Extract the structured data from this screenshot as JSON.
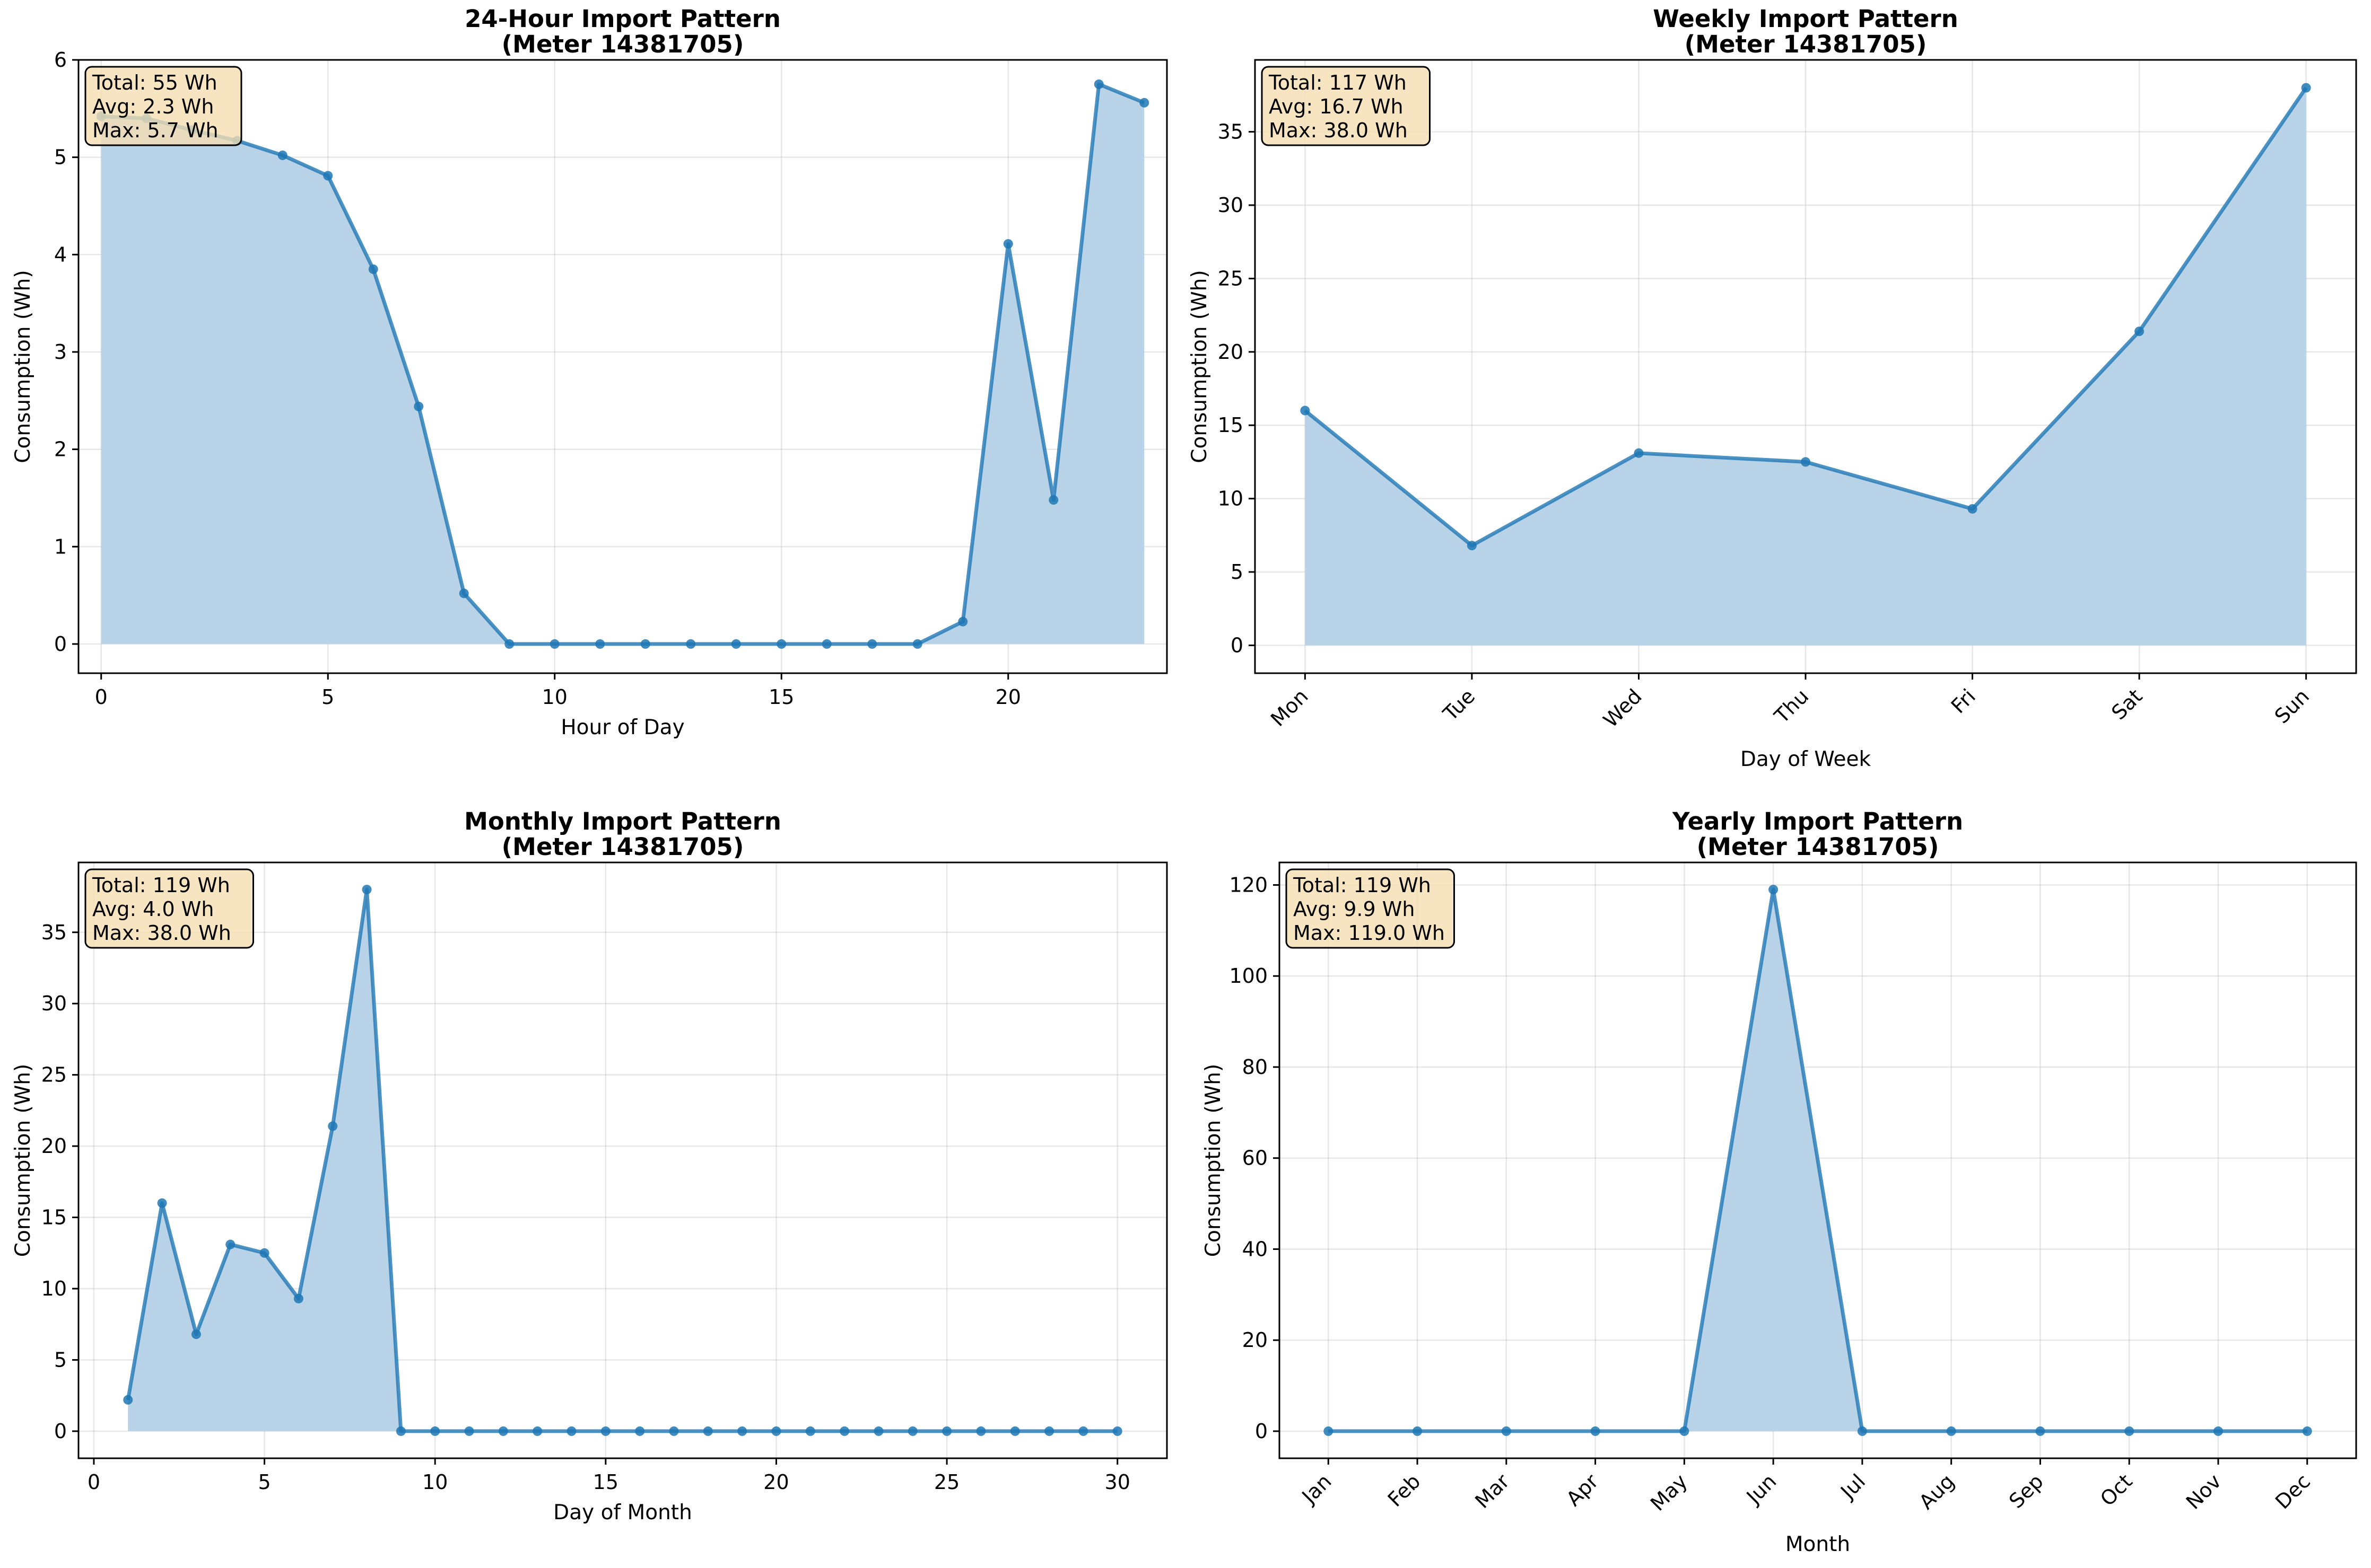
{
  "chart_data": [
    {
      "type": "area",
      "title": "24-Hour Import Pattern",
      "subtitle": "(Meter 14381705)",
      "xlabel": "Hour of Day",
      "ylabel": "Consumption (Wh)",
      "x": [
        0,
        1,
        2,
        3,
        4,
        5,
        6,
        7,
        8,
        9,
        10,
        11,
        12,
        13,
        14,
        15,
        16,
        17,
        18,
        19,
        20,
        21,
        22,
        23
      ],
      "values": [
        5.42,
        5.4,
        5.28,
        5.17,
        5.02,
        4.81,
        3.85,
        2.44,
        0.52,
        0.0,
        0.0,
        0.0,
        0.0,
        0.0,
        0.0,
        0.0,
        0.0,
        0.0,
        0.0,
        0.23,
        4.11,
        1.48,
        5.75,
        5.56
      ],
      "xlim": [
        -0.5,
        23.5
      ],
      "ylim": [
        -0.3,
        6.0
      ],
      "xticks": [
        0,
        5,
        10,
        15,
        20
      ],
      "xticklabels": [
        "0",
        "5",
        "10",
        "15",
        "20"
      ],
      "yticks": [
        0,
        1,
        2,
        3,
        4,
        5,
        6
      ],
      "yticklabels": [
        "0",
        "1",
        "2",
        "3",
        "4",
        "5",
        "6"
      ],
      "stats": [
        "Total: 55 Wh",
        "Avg: 2.3 Wh",
        "Max: 5.7 Wh"
      ],
      "grid": true,
      "color": "#1f77b4",
      "fill_color": "#b8d3e8"
    },
    {
      "type": "area",
      "title": "Weekly Import Pattern",
      "subtitle": "(Meter 14381705)",
      "xlabel": "Day of Week",
      "ylabel": "Consumption (Wh)",
      "categories": [
        "Mon",
        "Tue",
        "Wed",
        "Thu",
        "Fri",
        "Sat",
        "Sun"
      ],
      "x": [
        0,
        1,
        2,
        3,
        4,
        5,
        6
      ],
      "values": [
        16.0,
        6.8,
        13.1,
        12.5,
        9.3,
        21.4,
        38.0
      ],
      "xlim": [
        -0.3,
        6.3
      ],
      "ylim": [
        -1.9,
        39.9
      ],
      "xticks": [
        0,
        1,
        2,
        3,
        4,
        5,
        6
      ],
      "xticklabels": [
        "Mon",
        "Tue",
        "Wed",
        "Thu",
        "Fri",
        "Sat",
        "Sun"
      ],
      "yticks": [
        0,
        5,
        10,
        15,
        20,
        25,
        30,
        35
      ],
      "yticklabels": [
        "0",
        "5",
        "10",
        "15",
        "20",
        "25",
        "30",
        "35"
      ],
      "rotate_xticks": true,
      "stats": [
        "Total: 117 Wh",
        "Avg: 16.7 Wh",
        "Max: 38.0 Wh"
      ],
      "grid": true,
      "color": "#1f77b4",
      "fill_color": "#b8d3e8"
    },
    {
      "type": "area",
      "title": "Monthly Import Pattern",
      "subtitle": "(Meter 14381705)",
      "xlabel": "Day of Month",
      "ylabel": "Consumption (Wh)",
      "x": [
        1,
        2,
        3,
        4,
        5,
        6,
        7,
        8,
        9,
        10,
        11,
        12,
        13,
        14,
        15,
        16,
        17,
        18,
        19,
        20,
        21,
        22,
        23,
        24,
        25,
        26,
        27,
        28,
        29,
        30
      ],
      "values": [
        2.2,
        16.0,
        6.8,
        13.1,
        12.5,
        9.3,
        21.4,
        38.0,
        0.0,
        0.0,
        0.0,
        0.0,
        0.0,
        0.0,
        0.0,
        0.0,
        0.0,
        0.0,
        0.0,
        0.0,
        0.0,
        0.0,
        0.0,
        0.0,
        0.0,
        0.0,
        0.0,
        0.0,
        0.0,
        0.0
      ],
      "xlim": [
        -0.45,
        31.45
      ],
      "ylim": [
        -1.9,
        39.9
      ],
      "xticks": [
        0,
        5,
        10,
        15,
        20,
        25,
        30
      ],
      "xticklabels": [
        "0",
        "5",
        "10",
        "15",
        "20",
        "25",
        "30"
      ],
      "yticks": [
        0,
        5,
        10,
        15,
        20,
        25,
        30,
        35
      ],
      "yticklabels": [
        "0",
        "5",
        "10",
        "15",
        "20",
        "25",
        "30",
        "35"
      ],
      "stats": [
        "Total: 119 Wh",
        "Avg: 4.0 Wh",
        "Max: 38.0 Wh"
      ],
      "grid": true,
      "color": "#1f77b4",
      "fill_color": "#b8d3e8"
    },
    {
      "type": "area",
      "title": "Yearly Import Pattern",
      "subtitle": "(Meter 14381705)",
      "xlabel": "Month",
      "ylabel": "Consumption (Wh)",
      "categories": [
        "Jan",
        "Feb",
        "Mar",
        "Apr",
        "May",
        "Jun",
        "Jul",
        "Aug",
        "Sep",
        "Oct",
        "Nov",
        "Dec"
      ],
      "x": [
        0,
        1,
        2,
        3,
        4,
        5,
        6,
        7,
        8,
        9,
        10,
        11
      ],
      "values": [
        0.0,
        0.0,
        0.0,
        0.0,
        0.0,
        119.0,
        0.0,
        0.0,
        0.0,
        0.0,
        0.0,
        0.0
      ],
      "xlim": [
        -0.55,
        11.55
      ],
      "ylim": [
        -5.95,
        124.95
      ],
      "xticks": [
        0,
        1,
        2,
        3,
        4,
        5,
        6,
        7,
        8,
        9,
        10,
        11
      ],
      "xticklabels": [
        "Jan",
        "Feb",
        "Mar",
        "Apr",
        "May",
        "Jun",
        "Jul",
        "Aug",
        "Sep",
        "Oct",
        "Nov",
        "Dec"
      ],
      "yticks": [
        0,
        20,
        40,
        60,
        80,
        100,
        120
      ],
      "yticklabels": [
        "0",
        "20",
        "40",
        "60",
        "80",
        "100",
        "120"
      ],
      "rotate_xticks": true,
      "stats": [
        "Total: 119 Wh",
        "Avg: 9.9 Wh",
        "Max: 119.0 Wh"
      ],
      "grid": true,
      "color": "#1f77b4",
      "fill_color": "#b8d3e8"
    }
  ]
}
